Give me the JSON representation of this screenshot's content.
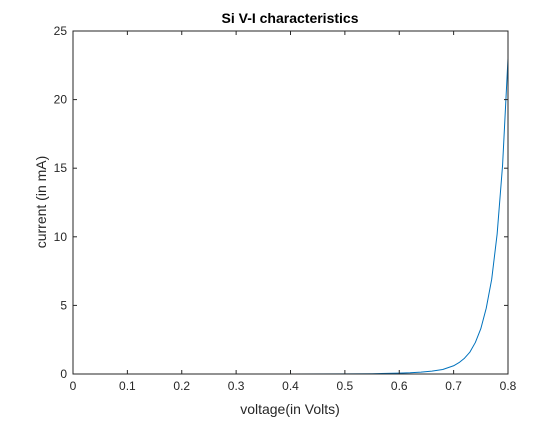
{
  "chart_data": {
    "type": "line",
    "title": "Si V-I characteristics",
    "xlabel": "voltage(in Volts)",
    "ylabel": "current (in mA)",
    "xlim": [
      0,
      0.8
    ],
    "ylim": [
      0,
      25
    ],
    "x_ticks": [
      0,
      0.1,
      0.2,
      0.3,
      0.4,
      0.5,
      0.6,
      0.7,
      0.8
    ],
    "y_ticks": [
      0,
      5,
      10,
      15,
      20,
      25
    ],
    "x_tick_labels": [
      "0",
      "0.1",
      "0.2",
      "0.3",
      "0.4",
      "0.5",
      "0.6",
      "0.7",
      "0.8"
    ],
    "y_tick_labels": [
      "0",
      "5",
      "10",
      "15",
      "20",
      "25"
    ],
    "grid": false,
    "series": [
      {
        "color": "#0072BD",
        "x": [
          0,
          0.1,
          0.2,
          0.3,
          0.4,
          0.5,
          0.55,
          0.6,
          0.62,
          0.64,
          0.66,
          0.68,
          0.7,
          0.71,
          0.72,
          0.73,
          0.74,
          0.75,
          0.76,
          0.77,
          0.78,
          0.79,
          0.8
        ],
        "y": [
          0,
          0,
          0,
          0,
          0,
          0.01,
          0.02,
          0.06,
          0.09,
          0.14,
          0.21,
          0.33,
          0.6,
          0.83,
          1.15,
          1.6,
          2.3,
          3.3,
          4.8,
          6.9,
          10.2,
          15.2,
          23.0
        ]
      }
    ]
  }
}
